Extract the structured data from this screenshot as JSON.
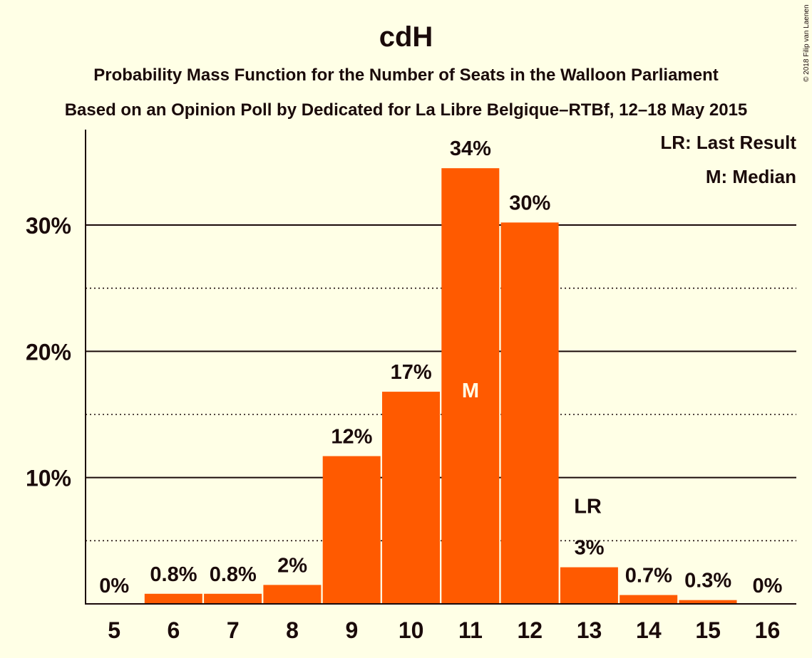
{
  "title": "cdH",
  "subtitle1": "Probability Mass Function for the Number of Seats in the Walloon Parliament",
  "subtitle2": "Based on an Opinion Poll by Dedicated for La Libre Belgique–RTBf, 12–18 May 2015",
  "copyright": "© 2018 Filip van Laenen",
  "legend": {
    "last_result": "LR: Last Result",
    "median": "M: Median"
  },
  "colors": {
    "bar": "#ff5a00",
    "background": "#ffffe6",
    "text": "#1a0a0a"
  },
  "chart_data": {
    "type": "bar",
    "categories": [
      "5",
      "6",
      "7",
      "8",
      "9",
      "10",
      "11",
      "12",
      "13",
      "14",
      "15",
      "16"
    ],
    "values": [
      0,
      0.8,
      0.8,
      1.5,
      11.7,
      16.8,
      34.5,
      30.2,
      2.9,
      0.7,
      0.3,
      0
    ],
    "data_labels": [
      "0%",
      "0.8%",
      "0.8%",
      "2%",
      "12%",
      "17%",
      "34%",
      "30%",
      "3%",
      "0.7%",
      "0.3%",
      "0%"
    ],
    "yticks": [
      10,
      20,
      30
    ],
    "ytick_labels": [
      "10%",
      "20%",
      "30%"
    ],
    "minor_gridlines": [
      5,
      15,
      25
    ],
    "ylim": [
      0,
      37.5
    ],
    "median_category": "11",
    "median_marker": "M",
    "last_result_category": "13",
    "last_result_marker": "LR",
    "grid": true,
    "legend_position": "top-right"
  }
}
